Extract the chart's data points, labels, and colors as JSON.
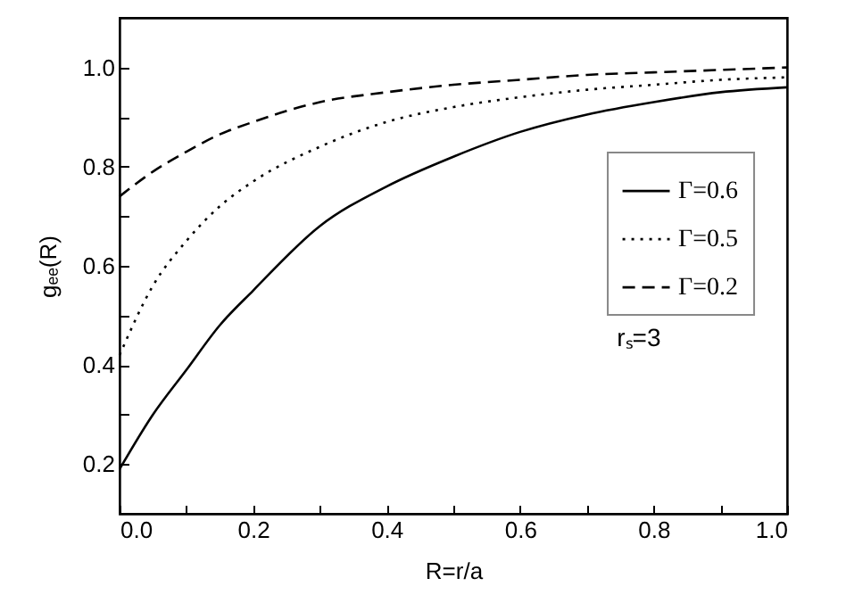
{
  "chart_data": {
    "type": "line",
    "xlabel": "R=r/a",
    "ylabel": "gₑₑ(R)",
    "x": [
      0,
      0.05,
      0.1,
      0.15,
      0.2,
      0.3,
      0.4,
      0.5,
      0.6,
      0.7,
      0.8,
      0.9,
      1.0
    ],
    "series": [
      {
        "name": "Γ=0.6",
        "color": "#000000",
        "line_style": "solid",
        "values": [
          0.19,
          0.3,
          0.39,
          0.48,
          0.55,
          0.68,
          0.76,
          0.82,
          0.87,
          0.905,
          0.93,
          0.95,
          0.96
        ]
      },
      {
        "name": "Γ=0.5",
        "color": "#000000",
        "line_style": "dotted",
        "values": [
          0.42,
          0.56,
          0.65,
          0.72,
          0.77,
          0.84,
          0.89,
          0.92,
          0.94,
          0.955,
          0.965,
          0.975,
          0.98
        ]
      },
      {
        "name": "Γ=0.2",
        "color": "#000000",
        "line_style": "dashed",
        "values": [
          0.74,
          0.79,
          0.83,
          0.865,
          0.89,
          0.93,
          0.95,
          0.965,
          0.975,
          0.985,
          0.99,
          0.995,
          1.0
        ]
      }
    ],
    "xlim": [
      0,
      1
    ],
    "ylim": [
      0.1,
      1.1
    ],
    "xticks": [
      {
        "value": 0,
        "label": "0.0"
      },
      {
        "value": 0.1,
        "label": null
      },
      {
        "value": 0.2,
        "label": "0.2"
      },
      {
        "value": 0.3,
        "label": null
      },
      {
        "value": 0.4,
        "label": "0.4"
      },
      {
        "value": 0.5,
        "label": null
      },
      {
        "value": 0.6,
        "label": "0.6"
      },
      {
        "value": 0.7,
        "label": null
      },
      {
        "value": 0.8,
        "label": "0.8"
      },
      {
        "value": 0.9,
        "label": null
      },
      {
        "value": 1,
        "label": "1.0"
      }
    ],
    "yticks": [
      {
        "value": 0.2,
        "label": "0.2"
      },
      {
        "value": 0.3,
        "label": null
      },
      {
        "value": 0.4,
        "label": "0.4"
      },
      {
        "value": 0.5,
        "label": null
      },
      {
        "value": 0.6,
        "label": "0.6"
      },
      {
        "value": 0.7,
        "label": null
      },
      {
        "value": 0.8,
        "label": "0.8"
      },
      {
        "value": 0.9,
        "label": null
      },
      {
        "value": 1.0,
        "label": "1.0"
      }
    ],
    "legend": "right",
    "grid": false,
    "annotations": [
      "rₛ=3"
    ]
  }
}
